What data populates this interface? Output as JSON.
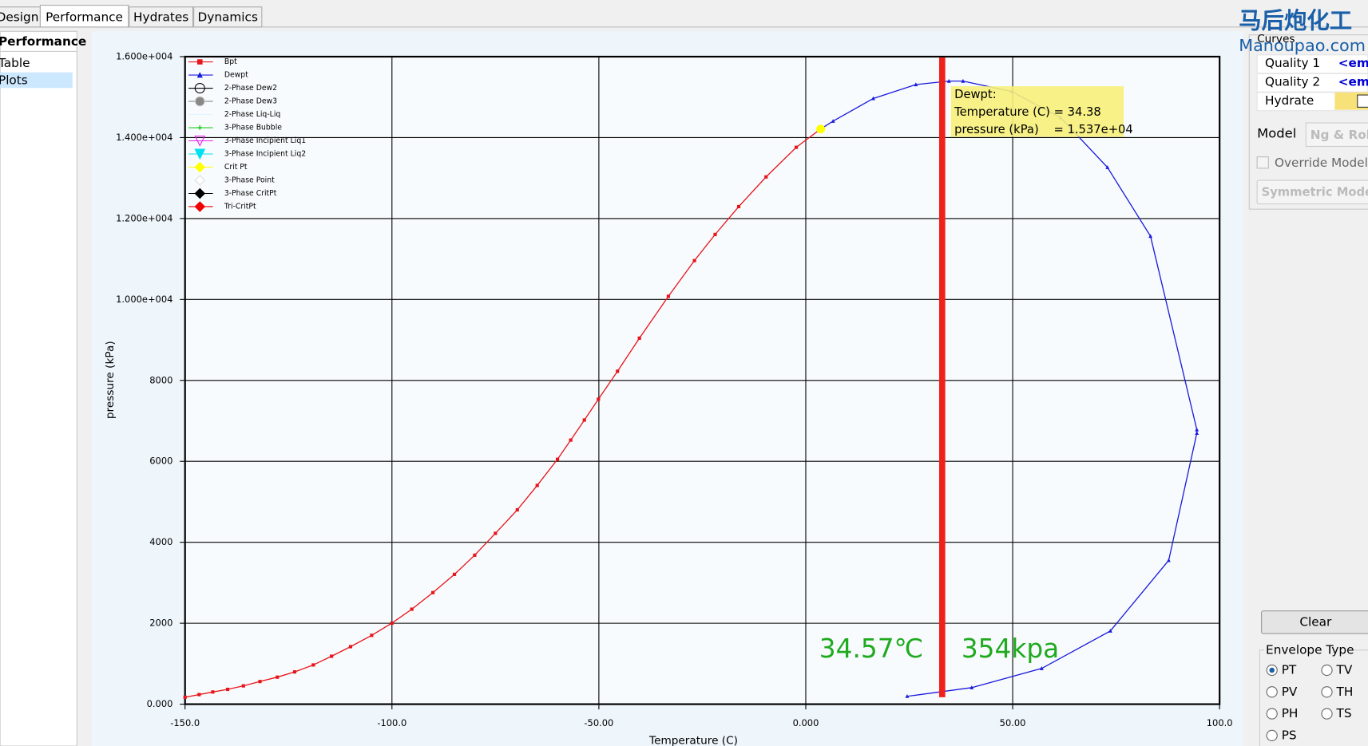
{
  "tabs": [
    "Design",
    "Performance",
    "Hydrates",
    "Dynamics"
  ],
  "sidebar": {
    "title": "Performance",
    "items": [
      "Table",
      "Plots"
    ]
  },
  "chart_data": {
    "type": "line",
    "x_label": "Temperature (C)",
    "y_label": "pressure (kPa)",
    "xlim": [
      -150,
      100
    ],
    "ylim": [
      0,
      16000
    ],
    "xticks": [
      {
        "value": -150,
        "label": "-150.0"
      },
      {
        "value": -100,
        "label": "-100.0"
      },
      {
        "value": -50,
        "label": "-50.00"
      },
      {
        "value": 0,
        "label": "0.000"
      },
      {
        "value": 50,
        "label": "50.00"
      },
      {
        "value": 100,
        "label": "100.0"
      }
    ],
    "yticks": [
      {
        "value": 0,
        "label": "0.000"
      },
      2000,
      4000,
      6000,
      8000,
      {
        "value": 10000,
        "label": "1.000e+004"
      },
      {
        "value": 12000,
        "label": "1.200e+004"
      },
      {
        "value": 14000,
        "label": "1.400e+004"
      },
      {
        "value": 16000,
        "label": "1.600e+004"
      }
    ],
    "grid": true,
    "legend": "top-left",
    "series": [
      {
        "name": "Bpt",
        "color": "#e8141b",
        "marker": "square",
        "x": [
          -150,
          -146.6,
          -143.3,
          -139.7,
          -135.9,
          -131.9,
          -127.7,
          -123.5,
          -119,
          -114.6,
          -110,
          -104.9,
          -100,
          -95.2,
          -90.1,
          -84.9,
          -80,
          -75,
          -69.7,
          -64.9,
          -60,
          -56.8,
          -53.5,
          -50.1,
          -45.5,
          -40.2,
          -33.2,
          -26.9,
          -21.9,
          -16.2,
          -9.6,
          -2.3,
          3.6
        ],
        "values": [
          172,
          237,
          301,
          366,
          452,
          560,
          668,
          797,
          969,
          1184,
          1421,
          1701,
          2003,
          2347,
          2756,
          3208,
          3682,
          4221,
          4802,
          5405,
          6051,
          6525,
          7020,
          7537,
          8226,
          9044,
          10078,
          10960,
          11606,
          12295,
          13028,
          13760,
          14212
        ]
      },
      {
        "name": "Dewpt",
        "color": "#1a1adc",
        "marker": "triangle",
        "x": [
          3.6,
          6.6,
          16.3,
          26.6,
          34.6,
          38,
          49.8,
          61.6,
          72.9,
          83.3,
          94.5,
          94.5,
          87.7,
          73.6,
          57,
          40.1,
          24.5
        ],
        "values": [
          14212,
          14406,
          14966,
          15310,
          15396,
          15396,
          15138,
          14492,
          13264,
          11563,
          6783,
          6697,
          3553,
          1809,
          883,
          409,
          194
        ]
      },
      {
        "name": "2-Phase Dew2",
        "color": "#000000",
        "marker": "circle-open"
      },
      {
        "name": "2-Phase Dew3",
        "color": "#888888",
        "marker": "circle"
      },
      {
        "name": "2-Phase Liq-Liq",
        "color": "#e0f4ff",
        "marker": "none"
      },
      {
        "name": "3-Phase Bubble",
        "color": "#22cc22",
        "marker": "plus"
      },
      {
        "name": "3-Phase Incipient Liq1",
        "color": "#ee22ee",
        "marker": "triangle-down-open"
      },
      {
        "name": "3-Phase Incipient Liq2",
        "color": "#00e0f0",
        "marker": "triangle-down"
      },
      {
        "name": "Crit Pt",
        "color": "#ffff00",
        "marker": "diamond",
        "x": [
          3.6
        ],
        "values": [
          14212
        ]
      },
      {
        "name": "3-Phase Point",
        "color": "#ffffff",
        "marker": "diamond"
      },
      {
        "name": "3-Phase CritPt",
        "color": "#000000",
        "marker": "diamond"
      },
      {
        "name": "Tri-CritPt",
        "color": "#ee0000",
        "marker": "diamond"
      }
    ],
    "tooltip": [
      "Dewpt:",
      "Temperature (C) = 34.38",
      "pressure (kPa)    = 1.537e+04"
    ],
    "annotations": [
      "34.57℃",
      "354kpa"
    ]
  },
  "panel": {
    "watermark": [
      "马后炮化工",
      "Manoupao.com"
    ],
    "curves_title": "Curves",
    "curves": [
      {
        "label": "Quality 1",
        "value": "<emp"
      },
      {
        "label": "Quality 2",
        "value": "<emp"
      },
      {
        "label": "Hydrate"
      }
    ],
    "model_label": "Model",
    "model_value": "Ng & Rob",
    "override": "Override Model",
    "symmetric": "Symmetric Model",
    "clear": "Clear",
    "envelope_title": "Envelope Type",
    "envelope_options": [
      "PT",
      "TV",
      "PV",
      "TH",
      "PH",
      "TS",
      "PS"
    ]
  }
}
